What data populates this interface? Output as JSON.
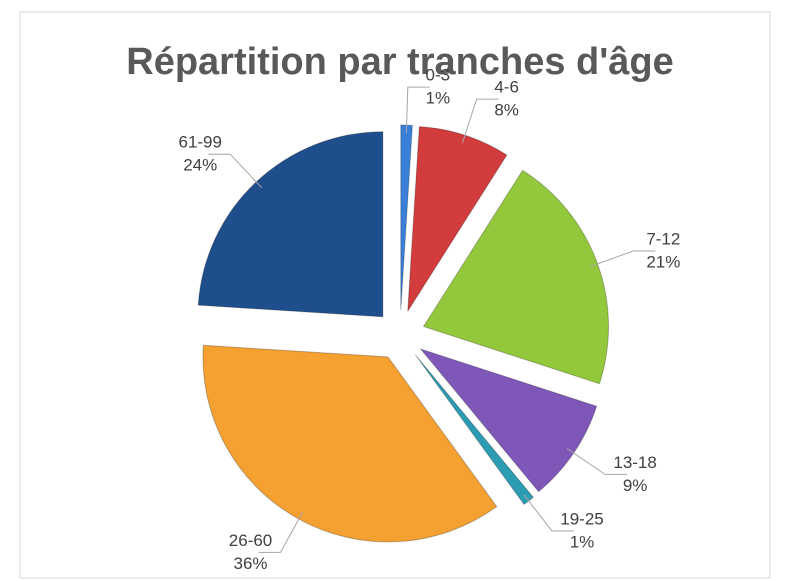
{
  "chart_data": {
    "type": "pie",
    "title": "Répartition par tranches d'âge",
    "categories": [
      "0-3",
      "4-6",
      "7-12",
      "13-18",
      "19-25",
      "26-60",
      "61-99"
    ],
    "values": [
      1,
      8,
      21,
      9,
      1,
      36,
      24
    ],
    "value_labels": [
      "1%",
      "8%",
      "21%",
      "9%",
      "1%",
      "36%",
      "24%"
    ],
    "colors": [
      "#3a7fd8",
      "#d23c3c",
      "#93c83c",
      "#7e57b8",
      "#2b9cb2",
      "#f5a132",
      "#1f4e8c"
    ]
  }
}
